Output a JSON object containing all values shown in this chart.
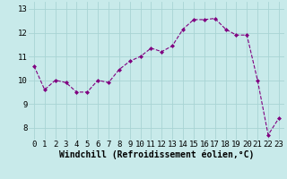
{
  "x": [
    0,
    1,
    2,
    3,
    4,
    5,
    6,
    7,
    8,
    9,
    10,
    11,
    12,
    13,
    14,
    15,
    16,
    17,
    18,
    19,
    20,
    21,
    22,
    23
  ],
  "y": [
    10.6,
    9.6,
    10.0,
    9.9,
    9.5,
    9.5,
    10.0,
    9.9,
    10.45,
    10.8,
    11.0,
    11.35,
    11.2,
    11.45,
    12.15,
    12.55,
    12.55,
    12.6,
    12.15,
    11.9,
    11.9,
    10.0,
    7.7,
    8.4
  ],
  "line_color": "#800080",
  "marker": "D",
  "marker_size": 2.0,
  "bg_color": "#c8eaea",
  "grid_color": "#a8d4d4",
  "xlabel": "Windchill (Refroidissement éolien,°C)",
  "xlabel_fontsize": 7,
  "tick_fontsize": 6.5,
  "ylim": [
    7.5,
    13.3
  ],
  "xlim": [
    -0.5,
    23.5
  ],
  "yticks": [
    8,
    9,
    10,
    11,
    12,
    13
  ],
  "xticks": [
    0,
    1,
    2,
    3,
    4,
    5,
    6,
    7,
    8,
    9,
    10,
    11,
    12,
    13,
    14,
    15,
    16,
    17,
    18,
    19,
    20,
    21,
    22,
    23
  ]
}
